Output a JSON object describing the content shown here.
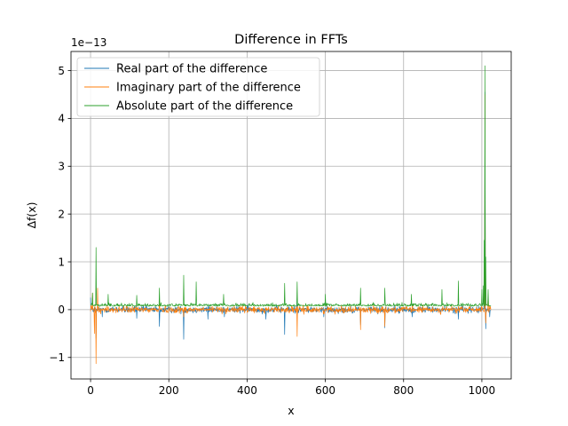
{
  "chart_data": {
    "type": "line",
    "title": "Difference in FFTs",
    "xlabel": "x",
    "ylabel": "Δf(x)",
    "y_scale_label": "1e−13",
    "y_scale": 1e-13,
    "xlim": [
      -50,
      1075
    ],
    "ylim": [
      -1.45,
      5.4
    ],
    "xticks": [
      0,
      200,
      400,
      600,
      800,
      1000
    ],
    "xtick_labels": [
      "0",
      "200",
      "400",
      "600",
      "800",
      "1000"
    ],
    "yticks": [
      -1,
      0,
      1,
      2,
      3,
      4,
      5
    ],
    "ytick_labels": [
      "−1",
      "0",
      "1",
      "2",
      "3",
      "4",
      "5"
    ],
    "grid": true,
    "legend_position": "upper-left",
    "n_points": 1024,
    "colors": {
      "real": "#1f77b4",
      "imag": "#ff7f0e",
      "abs": "#2ca02c"
    },
    "series": [
      {
        "name": "Real part of the difference",
        "key": "real",
        "color": "#1f77b4",
        "spikes": [
          [
            0,
            0.25
          ],
          [
            14,
            -0.6
          ],
          [
            30,
            -0.15
          ],
          [
            118,
            -0.18
          ],
          [
            176,
            -0.35
          ],
          [
            238,
            -0.62
          ],
          [
            300,
            -0.2
          ],
          [
            342,
            -0.15
          ],
          [
            448,
            -0.2
          ],
          [
            496,
            -0.52
          ],
          [
            528,
            0.25
          ],
          [
            596,
            -0.15
          ],
          [
            690,
            -0.32
          ],
          [
            752,
            -0.38
          ],
          [
            822,
            -0.15
          ],
          [
            940,
            -0.2
          ],
          [
            1006,
            0.5
          ],
          [
            1008,
            4.55
          ],
          [
            1010,
            -0.4
          ],
          [
            1020,
            -0.15
          ]
        ]
      },
      {
        "name": "Imaginary part of the difference",
        "key": "imag",
        "color": "#ff7f0e",
        "spikes": [
          [
            5,
            0.35
          ],
          [
            10,
            -0.5
          ],
          [
            14,
            -1.13
          ],
          [
            18,
            0.45
          ],
          [
            176,
            0.2
          ],
          [
            238,
            -0.15
          ],
          [
            528,
            -0.56
          ],
          [
            690,
            -0.42
          ],
          [
            752,
            -0.35
          ],
          [
            1008,
            4.5
          ],
          [
            1010,
            -0.28
          ],
          [
            1016,
            0.3
          ]
        ]
      },
      {
        "name": "Absolute part of the difference",
        "key": "abs",
        "color": "#2ca02c",
        "spikes": [
          [
            14,
            1.3
          ],
          [
            5,
            0.35
          ],
          [
            45,
            0.32
          ],
          [
            118,
            0.3
          ],
          [
            176,
            0.45
          ],
          [
            238,
            0.72
          ],
          [
            270,
            0.58
          ],
          [
            340,
            0.32
          ],
          [
            496,
            0.55
          ],
          [
            528,
            0.58
          ],
          [
            600,
            0.32
          ],
          [
            690,
            0.45
          ],
          [
            752,
            0.45
          ],
          [
            820,
            0.32
          ],
          [
            898,
            0.42
          ],
          [
            940,
            0.6
          ],
          [
            1000,
            0.42
          ],
          [
            1004,
            0.5
          ],
          [
            1006,
            1.45
          ],
          [
            1008,
            5.1
          ],
          [
            1010,
            1.1
          ],
          [
            1016,
            0.42
          ]
        ]
      }
    ]
  }
}
